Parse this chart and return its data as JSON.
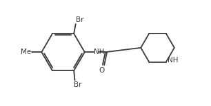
{
  "bg_color": "#ffffff",
  "line_color": "#3a3a3a",
  "text_color": "#3a3a3a",
  "figsize": [
    3.06,
    1.55
  ],
  "dpi": 100,
  "labels": {
    "Br_top": "Br",
    "Br_bottom": "Br",
    "Me": "Me",
    "NH": "NH",
    "O": "O",
    "NH_pip": "NH"
  },
  "fontsize": 7.5
}
